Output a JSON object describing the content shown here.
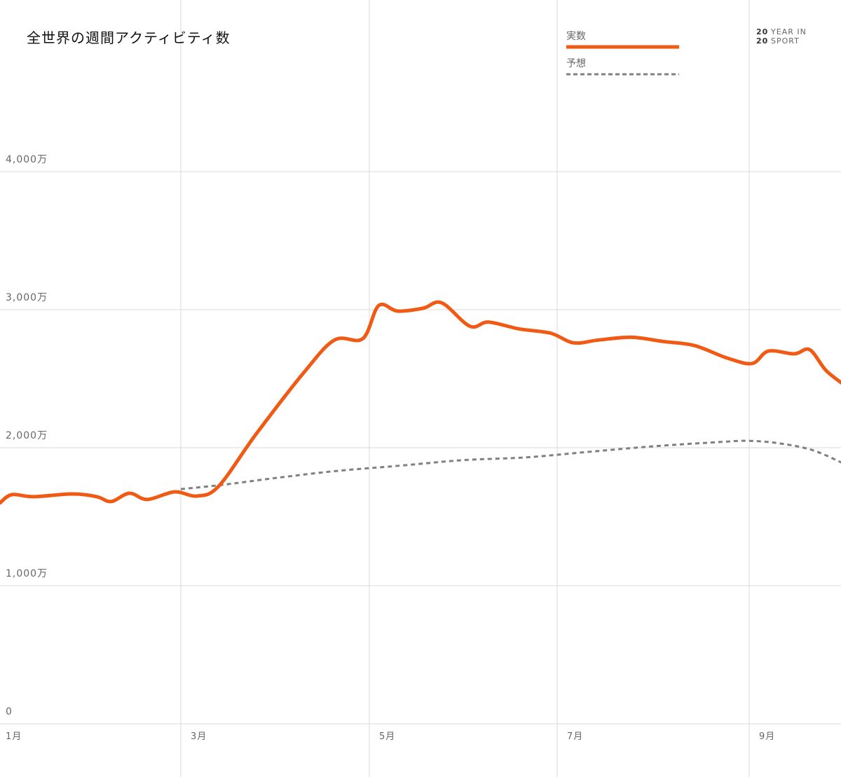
{
  "chart_data": {
    "type": "line",
    "title": "全世界の週間アクティビティ数",
    "xlabel": "",
    "ylabel": "",
    "x_ticks": [
      "1月",
      "3月",
      "5月",
      "7月",
      "9月"
    ],
    "y_ticks": [
      "0",
      "1,000万",
      "2,000万",
      "3,000万",
      "4,000万"
    ],
    "ylim": [
      0,
      40000000
    ],
    "xlim": [
      1.0,
      10.0
    ],
    "grid": true,
    "legend_position": "top-right",
    "series": [
      {
        "name": "実数",
        "color": "#f05a14",
        "style": "solid",
        "points": [
          [
            1.0,
            16000000
          ],
          [
            1.13,
            16600000
          ],
          [
            1.37,
            16450000
          ],
          [
            1.8,
            16650000
          ],
          [
            2.07,
            16450000
          ],
          [
            2.23,
            16100000
          ],
          [
            2.43,
            16700000
          ],
          [
            2.63,
            16250000
          ],
          [
            2.93,
            16800000
          ],
          [
            3.17,
            16500000
          ],
          [
            3.4,
            17200000
          ],
          [
            3.8,
            21000000
          ],
          [
            4.3,
            25400000
          ],
          [
            4.63,
            27800000
          ],
          [
            4.93,
            27900000
          ],
          [
            5.1,
            30300000
          ],
          [
            5.3,
            29900000
          ],
          [
            5.57,
            30100000
          ],
          [
            5.77,
            30500000
          ],
          [
            6.07,
            28800000
          ],
          [
            6.27,
            29100000
          ],
          [
            6.6,
            28600000
          ],
          [
            6.93,
            28300000
          ],
          [
            7.17,
            27600000
          ],
          [
            7.43,
            27800000
          ],
          [
            7.77,
            28000000
          ],
          [
            8.1,
            27700000
          ],
          [
            8.43,
            27400000
          ],
          [
            8.77,
            26500000
          ],
          [
            9.03,
            26100000
          ],
          [
            9.2,
            27000000
          ],
          [
            9.47,
            26800000
          ],
          [
            9.63,
            27100000
          ],
          [
            9.8,
            25600000
          ],
          [
            10.0,
            24500000
          ]
        ]
      },
      {
        "name": "予想",
        "color": "#808080",
        "style": "dashed",
        "points": [
          [
            3.0,
            17000000
          ],
          [
            3.43,
            17300000
          ],
          [
            4.0,
            17800000
          ],
          [
            4.63,
            18300000
          ],
          [
            5.33,
            18700000
          ],
          [
            6.0,
            19100000
          ],
          [
            6.67,
            19300000
          ],
          [
            7.33,
            19700000
          ],
          [
            8.0,
            20100000
          ],
          [
            8.67,
            20400000
          ],
          [
            9.0,
            20500000
          ],
          [
            9.33,
            20300000
          ],
          [
            9.67,
            19800000
          ],
          [
            10.0,
            18800000
          ]
        ]
      }
    ]
  },
  "legend": {
    "items": [
      {
        "label": "実数",
        "color": "#f05a14",
        "style": "solid"
      },
      {
        "label": "予想",
        "color": "#808080",
        "style": "dashed"
      }
    ]
  },
  "brand": {
    "year_top": "20",
    "year_bottom": "20",
    "text_top": "YEAR IN",
    "text_bottom": "SPORT"
  }
}
